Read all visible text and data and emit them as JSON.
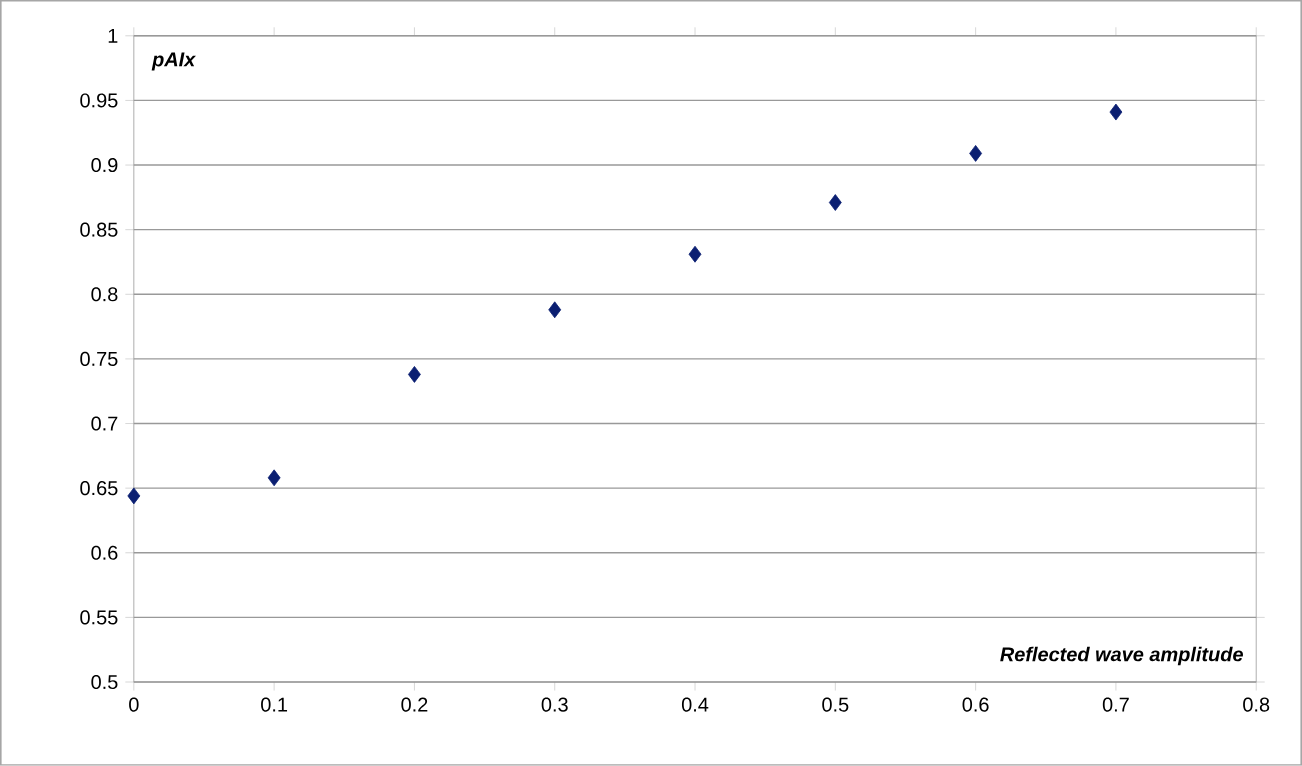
{
  "chart_data": {
    "type": "scatter",
    "xlabel": "Reflected wave amplitude",
    "ylabel": "pAIx",
    "x": [
      0,
      0.1,
      0.2,
      0.3,
      0.4,
      0.5,
      0.6,
      0.7
    ],
    "values": [
      0.644,
      0.658,
      0.738,
      0.788,
      0.831,
      0.871,
      0.909,
      0.941
    ],
    "color": "#0b1f72",
    "marker": "diamond",
    "grid": "y",
    "xlim": [
      0,
      0.8
    ],
    "ylim": [
      0.5,
      1
    ],
    "xticks": [
      0,
      0.1,
      0.2,
      0.3,
      0.4,
      0.5,
      0.6,
      0.7,
      0.8
    ],
    "yticks": [
      0.5,
      0.55,
      0.6,
      0.65,
      0.7,
      0.75,
      0.8,
      0.85,
      0.9,
      0.95,
      1
    ]
  }
}
